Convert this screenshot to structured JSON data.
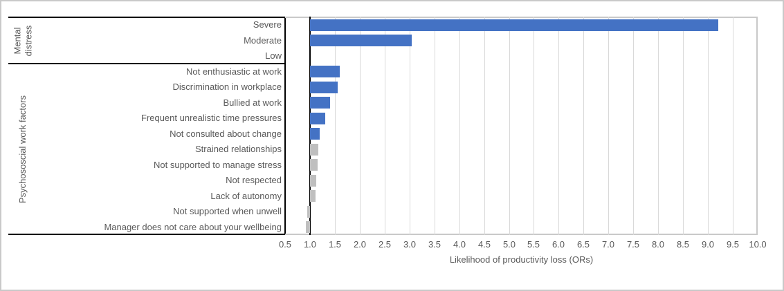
{
  "chart_data": {
    "type": "bar",
    "orientation": "horizontal",
    "title": "",
    "xlabel": "Likelihood of productivity loss (ORs)",
    "ylabel": "",
    "grid": "vertical",
    "legend": null,
    "x_axis": {
      "min": 0.5,
      "max": 10.0,
      "tick_step": 0.5,
      "crosses_at": 1.0,
      "tick_labels": [
        "0.5",
        "1.0",
        "1.5",
        "2.0",
        "2.5",
        "3.0",
        "3.5",
        "4.0",
        "4.5",
        "5.0",
        "5.5",
        "6.0",
        "6.5",
        "7.0",
        "7.5",
        "8.0",
        "8.5",
        "9.0",
        "9.5",
        "10.0"
      ]
    },
    "groups": [
      {
        "label": "Mental distress",
        "items": [
          {
            "category": "Severe",
            "value": 9.2,
            "color_key": "blue"
          },
          {
            "category": "Moderate",
            "value": 3.05,
            "color_key": "blue"
          },
          {
            "category": "Low",
            "value": null,
            "color_key": "blue"
          }
        ]
      },
      {
        "label": "Psychososcial work factors",
        "items": [
          {
            "category": "Not enthusiastic at work",
            "value": 1.6,
            "color_key": "blue"
          },
          {
            "category": "Discrimination in workplace",
            "value": 1.55,
            "color_key": "blue"
          },
          {
            "category": "Bullied at work",
            "value": 1.4,
            "color_key": "blue"
          },
          {
            "category": "Frequent unrealistic time pressures",
            "value": 1.3,
            "color_key": "blue"
          },
          {
            "category": "Not consulted about change",
            "value": 1.2,
            "color_key": "blue"
          },
          {
            "category": "Strained relationships",
            "value": 1.17,
            "color_key": "gray"
          },
          {
            "category": "Not supported to manage stress",
            "value": 1.15,
            "color_key": "gray"
          },
          {
            "category": "Not respected",
            "value": 1.13,
            "color_key": "gray"
          },
          {
            "category": "Lack of autonomy",
            "value": 1.11,
            "color_key": "gray"
          },
          {
            "category": "Not supported when unwell",
            "value": 0.94,
            "color_key": "gray"
          },
          {
            "category": "Manager does not care about your wellbeing",
            "value": 0.92,
            "color_key": "gray"
          }
        ]
      }
    ],
    "colors": {
      "blue": "#4472C4",
      "gray": "#BFBFBF",
      "gridline": "#D9D9D9",
      "plot_border": "#C9C9C9",
      "axis_line": "#000000",
      "text": "#595959"
    }
  }
}
